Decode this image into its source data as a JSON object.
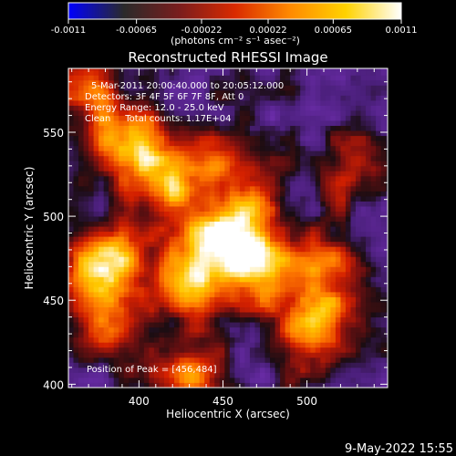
{
  "colorbar": {
    "tick_labels": [
      "-0.0011",
      "-0.00065",
      "-0.00022",
      "0.00022",
      "0.00065",
      "0.0011"
    ],
    "tick_values": [
      -0.0011,
      -0.00065,
      -0.00022,
      0.00022,
      0.00065,
      0.0011
    ],
    "range": [
      -0.0011,
      0.0011
    ],
    "units_label": "(photons cm⁻² s⁻¹ asec⁻²)",
    "colors": [
      "#0000ff",
      "#2a2a2a",
      "#7a1d1d",
      "#d92a00",
      "#ff8a00",
      "#ffd200",
      "#ffffff"
    ]
  },
  "chart_data": {
    "type": "heatmap",
    "title": "Reconstructed RHESSI Image",
    "xlabel": "Heliocentric X (arcsec)",
    "ylabel": "Heliocentric Y (arcsec)",
    "xlim": [
      358,
      548
    ],
    "ylim": [
      398,
      588
    ],
    "x_ticks": [
      400,
      450,
      500
    ],
    "y_ticks": [
      400,
      450,
      500,
      550
    ],
    "x_tick_labels": [
      "400",
      "450",
      "500"
    ],
    "y_tick_labels": [
      "400",
      "450",
      "500",
      "550"
    ],
    "annotations": [
      "5-Mar-2011 20:00:40.000 to 20:05:12.000",
      "Detectors: 3F 4F 5F 6F 7F 8F, Att 0",
      "Energy Range: 12.0 - 25.0 keV",
      "Clean     Total counts: 1.17E+04"
    ],
    "peak_label": "Position of Peak = [456,484]",
    "peak": [
      456,
      484
    ],
    "background_colors": {
      "purple": "#6a2ca8",
      "dark": "#1a0d12"
    },
    "sources": [
      {
        "x": 455,
        "y": 485,
        "intensity": 1.0
      },
      {
        "x": 381,
        "y": 471,
        "intensity": 0.85
      },
      {
        "x": 395,
        "y": 543,
        "intensity": 0.8
      },
      {
        "x": 503,
        "y": 434,
        "intensity": 0.75
      },
      {
        "x": 368,
        "y": 575,
        "intensity": 0.5
      },
      {
        "x": 420,
        "y": 510,
        "intensity": 0.55
      },
      {
        "x": 430,
        "y": 460,
        "intensity": 0.55
      },
      {
        "x": 472,
        "y": 470,
        "intensity": 0.5
      },
      {
        "x": 440,
        "y": 535,
        "intensity": 0.45
      },
      {
        "x": 430,
        "y": 405,
        "intensity": 0.6
      },
      {
        "x": 470,
        "y": 520,
        "intensity": 0.4
      },
      {
        "x": 525,
        "y": 525,
        "intensity": 0.38
      },
      {
        "x": 515,
        "y": 470,
        "intensity": 0.42
      },
      {
        "x": 380,
        "y": 430,
        "intensity": 0.35
      }
    ]
  },
  "footer": {
    "timestamp": "9-May-2022 15:55"
  }
}
